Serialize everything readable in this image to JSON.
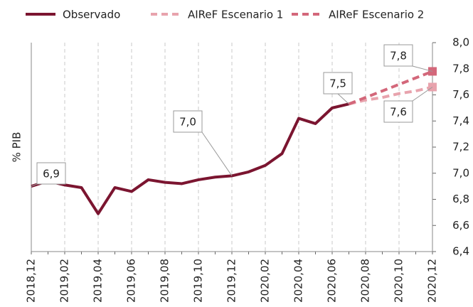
{
  "chart_data": {
    "type": "line",
    "y_label": "% PIB",
    "categories": [
      "2018,12",
      null,
      "2019,02",
      null,
      "2019,04",
      null,
      "2019,06",
      null,
      "2019,08",
      null,
      "2019,10",
      null,
      "2019,12",
      null,
      "2020,02",
      null,
      "2020,04",
      null,
      "2020,06",
      null,
      "2020,08",
      null,
      "2020,10",
      null,
      "2020,12"
    ],
    "series": [
      {
        "name": "Observado",
        "color": "#7b1530",
        "dashed": false,
        "values": [
          6.9,
          6.94,
          6.91,
          6.89,
          6.69,
          6.89,
          6.86,
          6.95,
          6.93,
          6.92,
          6.95,
          6.97,
          6.98,
          7.01,
          7.06,
          7.15,
          7.42,
          7.38,
          7.5,
          7.53,
          null,
          null,
          null,
          null,
          null
        ]
      },
      {
        "name": "AIReF Escenario 1",
        "color": "#e8a3ad",
        "dashed": true,
        "values": [
          null,
          null,
          null,
          null,
          null,
          null,
          null,
          null,
          null,
          null,
          null,
          null,
          null,
          null,
          null,
          null,
          null,
          null,
          null,
          7.53,
          7.56,
          7.58,
          7.61,
          7.63,
          7.66
        ]
      },
      {
        "name": "AIReF Escenario 2",
        "color": "#d3677a",
        "dashed": true,
        "values": [
          null,
          null,
          null,
          null,
          null,
          null,
          null,
          null,
          null,
          null,
          null,
          null,
          null,
          null,
          null,
          null,
          null,
          null,
          null,
          7.53,
          7.58,
          7.63,
          7.68,
          7.73,
          7.78
        ]
      }
    ],
    "annotations": [
      "6,9",
      "7,0",
      "7,5",
      "7,8",
      "7,6"
    ],
    "ylim": [
      6.4,
      8.0
    ],
    "yticks": [
      {
        "value": 6.4,
        "label": "6,4"
      },
      {
        "value": 6.6,
        "label": "6,6"
      },
      {
        "value": 6.8,
        "label": "6,8"
      },
      {
        "value": 7.0,
        "label": "7,0"
      },
      {
        "value": 7.2,
        "label": "7,2"
      },
      {
        "value": 7.4,
        "label": "7,4"
      },
      {
        "value": 7.6,
        "label": "7,6"
      },
      {
        "value": 7.8,
        "label": "7,8"
      },
      {
        "value": 8.0,
        "label": "8,0"
      }
    ],
    "grid": true
  }
}
